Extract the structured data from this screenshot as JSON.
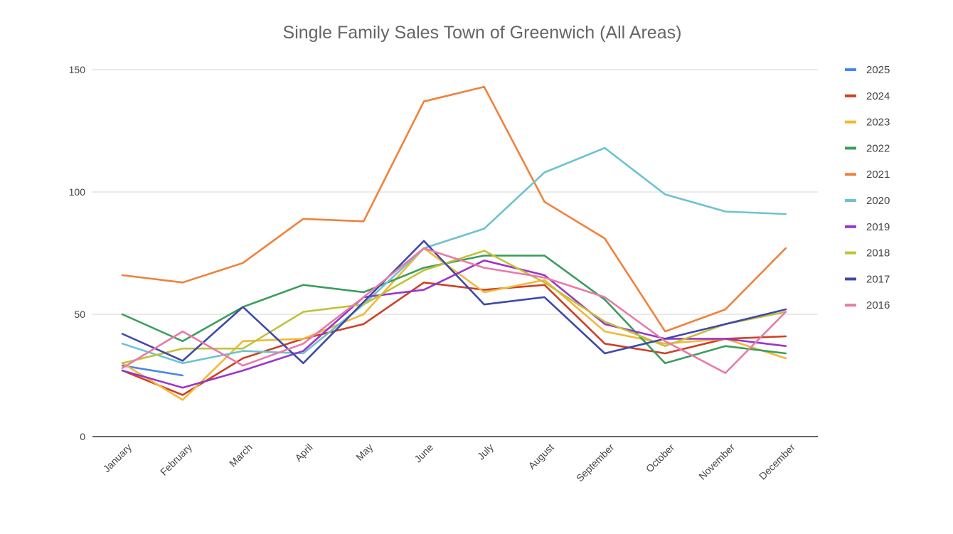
{
  "chart_data": {
    "type": "line",
    "title": "Single Family Sales Town of Greenwich (All Areas)",
    "xlabel": "",
    "ylabel": "",
    "ylim": [
      0,
      150
    ],
    "yticks": [
      0,
      50,
      100,
      150
    ],
    "grid": true,
    "legend_position": "right",
    "categories": [
      "January",
      "February",
      "March",
      "April",
      "May",
      "June",
      "July",
      "August",
      "September",
      "October",
      "November",
      "December"
    ],
    "series": [
      {
        "name": "2025",
        "color": "#4a86e8",
        "values": [
          29,
          25,
          null,
          null,
          null,
          null,
          null,
          null,
          null,
          null,
          null,
          null
        ]
      },
      {
        "name": "2024",
        "color": "#cc4125",
        "values": [
          27,
          17,
          32,
          40,
          46,
          63,
          60,
          62,
          38,
          34,
          40,
          41
        ]
      },
      {
        "name": "2023",
        "color": "#f1b938",
        "values": [
          30,
          15,
          39,
          40,
          50,
          77,
          59,
          64,
          43,
          38,
          40,
          32
        ]
      },
      {
        "name": "2022",
        "color": "#3a9e5c",
        "values": [
          50,
          39,
          53,
          62,
          59,
          69,
          74,
          74,
          56,
          30,
          37,
          34
        ]
      },
      {
        "name": "2021",
        "color": "#f0813c",
        "values": [
          66,
          63,
          71,
          89,
          88,
          137,
          143,
          96,
          81,
          43,
          52,
          77
        ]
      },
      {
        "name": "2020",
        "color": "#6cc3cf",
        "values": [
          38,
          30,
          35,
          34,
          54,
          77,
          85,
          108,
          118,
          99,
          92,
          91
        ]
      },
      {
        "name": "2019",
        "color": "#9b36c9",
        "values": [
          27,
          20,
          27,
          35,
          57,
          60,
          72,
          66,
          46,
          40,
          40,
          37
        ]
      },
      {
        "name": "2018",
        "color": "#c2c13a",
        "values": [
          30,
          36,
          36,
          51,
          54,
          68,
          76,
          63,
          47,
          37,
          46,
          51
        ]
      },
      {
        "name": "2017",
        "color": "#3f4aa8",
        "values": [
          42,
          31,
          53,
          30,
          55,
          80,
          54,
          57,
          34,
          40,
          46,
          52
        ]
      },
      {
        "name": "2016",
        "color": "#e97aa8",
        "values": [
          28,
          43,
          29,
          38,
          57,
          77,
          69,
          65,
          57,
          39,
          26,
          51
        ]
      }
    ]
  }
}
